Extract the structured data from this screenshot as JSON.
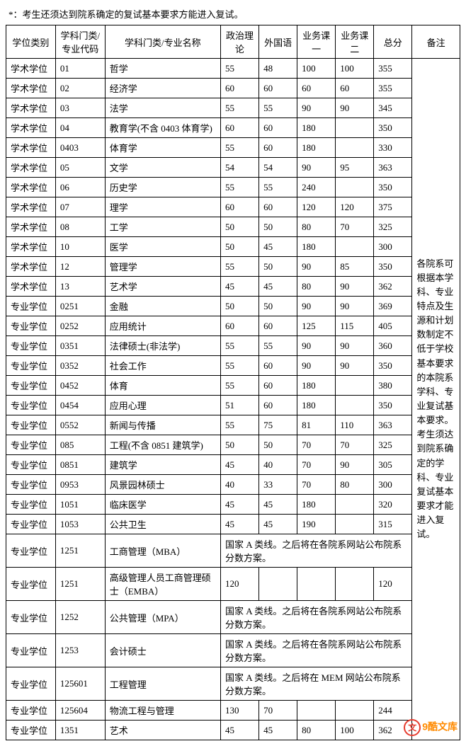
{
  "top_note": "*：考生还须达到院系确定的复试基本要求方能进入复试。",
  "headers": {
    "degree": "学位类别",
    "code": "学科门类/\n专业代码",
    "name": "学科门类/专业名称",
    "s1": "政治理论",
    "s2": "外国语",
    "s3": "业务课一",
    "s4": "业务课二",
    "total": "总分",
    "remark": "备注"
  },
  "remark_text": "各院系可根据本学科、专业特点及生源和计划数制定不低于学校基本要求的本院系学科、专业复试基本要求。考生须达到院系确定的学科、专业复试基本要求才能进入复试。",
  "merged_a": "国家 A 类线。之后将在各院系网站公布院系分数方案。",
  "merged_b": "国家 A 类线。之后将在 MEM 网站公布院系分数方案。",
  "rows": [
    {
      "degree": "学术学位",
      "code": "01",
      "name": "哲学",
      "s1": "55",
      "s2": "48",
      "s3": "100",
      "s4": "100",
      "total": "355"
    },
    {
      "degree": "学术学位",
      "code": "02",
      "name": "经济学",
      "s1": "60",
      "s2": "60",
      "s3": "60",
      "s4": "60",
      "total": "355"
    },
    {
      "degree": "学术学位",
      "code": "03",
      "name": "法学",
      "s1": "55",
      "s2": "55",
      "s3": "90",
      "s4": "90",
      "total": "345"
    },
    {
      "degree": "学术学位",
      "code": "04",
      "name": "教育学(不含 0403 体育学)",
      "s1": "60",
      "s2": "60",
      "s3": "180",
      "s4": "",
      "total": "350"
    },
    {
      "degree": "学术学位",
      "code": "0403",
      "name": "体育学",
      "s1": "55",
      "s2": "60",
      "s3": "180",
      "s4": "",
      "total": "330"
    },
    {
      "degree": "学术学位",
      "code": "05",
      "name": "文学",
      "s1": "54",
      "s2": "54",
      "s3": "90",
      "s4": "95",
      "total": "363"
    },
    {
      "degree": "学术学位",
      "code": "06",
      "name": "历史学",
      "s1": "55",
      "s2": "55",
      "s3": "240",
      "s4": "",
      "total": "350"
    },
    {
      "degree": "学术学位",
      "code": "07",
      "name": "理学",
      "s1": "60",
      "s2": "60",
      "s3": "120",
      "s4": "120",
      "total": "375"
    },
    {
      "degree": "学术学位",
      "code": "08",
      "name": "工学",
      "s1": "50",
      "s2": "50",
      "s3": "80",
      "s4": "70",
      "total": "325"
    },
    {
      "degree": "学术学位",
      "code": "10",
      "name": "医学",
      "s1": "50",
      "s2": "45",
      "s3": "180",
      "s4": "",
      "total": "300"
    },
    {
      "degree": "学术学位",
      "code": "12",
      "name": "管理学",
      "s1": "55",
      "s2": "50",
      "s3": "90",
      "s4": "85",
      "total": "350"
    },
    {
      "degree": "学术学位",
      "code": "13",
      "name": "艺术学",
      "s1": "45",
      "s2": "45",
      "s3": "80",
      "s4": "90",
      "total": "362"
    },
    {
      "degree": "专业学位",
      "code": "0251",
      "name": "金融",
      "s1": "50",
      "s2": "50",
      "s3": "90",
      "s4": "90",
      "total": "369"
    },
    {
      "degree": "专业学位",
      "code": "0252",
      "name": "应用统计",
      "s1": "60",
      "s2": "60",
      "s3": "125",
      "s4": "115",
      "total": "405"
    },
    {
      "degree": "专业学位",
      "code": "0351",
      "name": "法律硕士(非法学)",
      "s1": "55",
      "s2": "55",
      "s3": "90",
      "s4": "90",
      "total": "360"
    },
    {
      "degree": "专业学位",
      "code": "0352",
      "name": "社会工作",
      "s1": "55",
      "s2": "60",
      "s3": "90",
      "s4": "90",
      "total": "350"
    },
    {
      "degree": "专业学位",
      "code": "0452",
      "name": "体育",
      "s1": "55",
      "s2": "60",
      "s3": "180",
      "s4": "",
      "total": "380"
    },
    {
      "degree": "专业学位",
      "code": "0454",
      "name": "应用心理",
      "s1": "51",
      "s2": "60",
      "s3": "180",
      "s4": "",
      "total": "350"
    },
    {
      "degree": "专业学位",
      "code": "0552",
      "name": "新闻与传播",
      "s1": "55",
      "s2": "75",
      "s3": "81",
      "s4": "110",
      "total": "363"
    },
    {
      "degree": "专业学位",
      "code": "085",
      "name": "工程(不含 0851 建筑学)",
      "s1": "50",
      "s2": "50",
      "s3": "70",
      "s4": "70",
      "total": "325"
    },
    {
      "degree": "专业学位",
      "code": "0851",
      "name": "建筑学",
      "s1": "45",
      "s2": "40",
      "s3": "70",
      "s4": "90",
      "total": "305"
    },
    {
      "degree": "专业学位",
      "code": "0953",
      "name": "风景园林硕士",
      "s1": "40",
      "s2": "33",
      "s3": "70",
      "s4": "80",
      "total": "300"
    },
    {
      "degree": "专业学位",
      "code": "1051",
      "name": "临床医学",
      "s1": "45",
      "s2": "45",
      "s3": "180",
      "s4": "",
      "total": "320"
    },
    {
      "degree": "专业学位",
      "code": "1053",
      "name": "公共卫生",
      "s1": "45",
      "s2": "45",
      "s3": "190",
      "s4": "",
      "total": "315"
    },
    {
      "degree": "专业学位",
      "code": "1251",
      "name": "工商管理（MBA）",
      "merged": "a"
    },
    {
      "degree": "专业学位",
      "code": "1251",
      "name": "高级管理人员工商管理硕士（EMBA）",
      "s1": "120",
      "s2": "",
      "s3": "",
      "s4": "",
      "total": "120"
    },
    {
      "degree": "专业学位",
      "code": "1252",
      "name": "公共管理（MPA）",
      "merged": "a"
    },
    {
      "degree": "专业学位",
      "code": "1253",
      "name": "会计硕士",
      "merged": "a"
    },
    {
      "degree": "专业学位",
      "code": "125601",
      "name": "工程管理",
      "merged": "b"
    },
    {
      "degree": "专业学位",
      "code": "125604",
      "name": "物流工程与管理",
      "s1": "130",
      "s2": "70",
      "s3": "",
      "s4": "",
      "total": "244"
    },
    {
      "degree": "专业学位",
      "code": "1351",
      "name": "艺术",
      "s1": "45",
      "s2": "45",
      "s3": "80",
      "s4": "100",
      "total": "362"
    }
  ],
  "watermark": "9酷文库",
  "style": {
    "font_family": "SimSun",
    "font_size_pt": 10,
    "border_color": "#000000",
    "background": "#ffffff",
    "text_color": "#000000",
    "watermark_color": "#ff8a00",
    "watermark_circ_color": "#e63b2e"
  }
}
